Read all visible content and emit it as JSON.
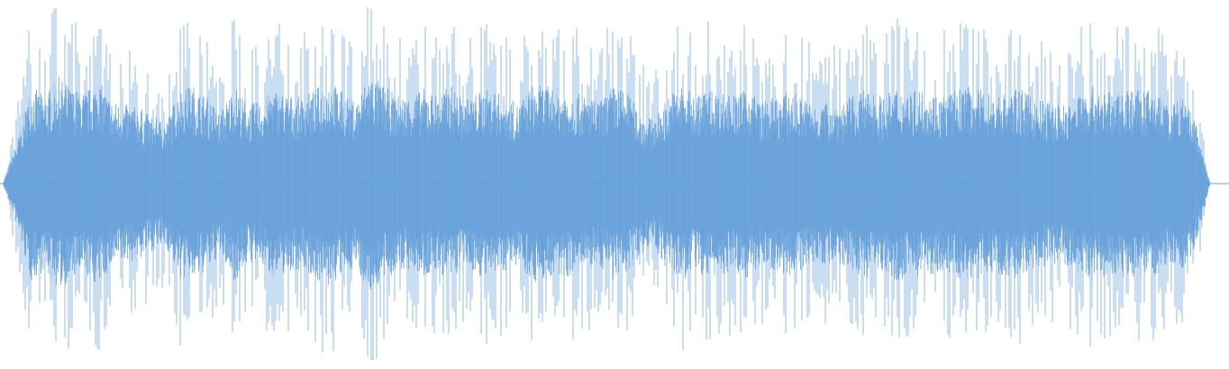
{
  "waveform": {
    "color": "#66a1da",
    "background": "#ffffff",
    "style": "mirrored-amplitude",
    "envelope": [
      0.02,
      0.28,
      0.62,
      0.55,
      0.68,
      0.6,
      0.58,
      0.65,
      0.52,
      0.5,
      0.48,
      0.42,
      0.4,
      0.6,
      0.62,
      0.55,
      0.45,
      0.62,
      0.5,
      0.52,
      0.6,
      0.56,
      0.54,
      0.6,
      0.66,
      0.58,
      0.52,
      0.7,
      0.62,
      0.56,
      0.55,
      0.6,
      0.56,
      0.62,
      0.52,
      0.58,
      0.6,
      0.55,
      0.5,
      0.62,
      0.62,
      0.6,
      0.58,
      0.55,
      0.52,
      0.62,
      0.58,
      0.45,
      0.4,
      0.55,
      0.62,
      0.56,
      0.6,
      0.58,
      0.56,
      0.6,
      0.52,
      0.55,
      0.58,
      0.54,
      0.5,
      0.52,
      0.52,
      0.58,
      0.6,
      0.54,
      0.62,
      0.58,
      0.6,
      0.56,
      0.58,
      0.62,
      0.6,
      0.56,
      0.58,
      0.6,
      0.54,
      0.52,
      0.5,
      0.55,
      0.62,
      0.6,
      0.56,
      0.62,
      0.58,
      0.6,
      0.5,
      0.55,
      0.4,
      0.02
    ]
  }
}
